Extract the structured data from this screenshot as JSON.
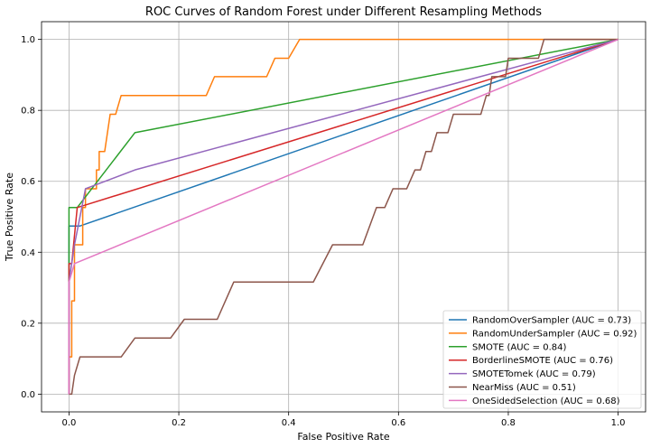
{
  "chart_data": {
    "type": "line",
    "title": "ROC Curves of Random Forest under Different Resampling Methods",
    "xlabel": "False Positive Rate",
    "ylabel": "True Positive Rate",
    "xlim": [
      -0.05,
      1.05
    ],
    "ylim": [
      -0.05,
      1.05
    ],
    "xticks": [
      "0.0",
      "0.2",
      "0.4",
      "0.6",
      "0.8",
      "1.0"
    ],
    "yticks": [
      "0.0",
      "0.2",
      "0.4",
      "0.6",
      "0.8",
      "1.0"
    ],
    "grid": true,
    "legend_position": "lower-right",
    "series": [
      {
        "name": "RandomOverSampler (AUC = 0.73)",
        "color": "#1f77b4",
        "points": [
          [
            0,
            0
          ],
          [
            0,
            0.474
          ],
          [
            0.02,
            0.474
          ],
          [
            1,
            1
          ]
        ]
      },
      {
        "name": "RandomUnderSampler (AUC = 0.92)",
        "color": "#ff7f0e",
        "points": [
          [
            0,
            0
          ],
          [
            0,
            0.105
          ],
          [
            0.005,
            0.105
          ],
          [
            0.005,
            0.263
          ],
          [
            0.01,
            0.263
          ],
          [
            0.01,
            0.421
          ],
          [
            0.025,
            0.421
          ],
          [
            0.025,
            0.526
          ],
          [
            0.03,
            0.526
          ],
          [
            0.03,
            0.579
          ],
          [
            0.05,
            0.579
          ],
          [
            0.05,
            0.632
          ],
          [
            0.055,
            0.632
          ],
          [
            0.055,
            0.684
          ],
          [
            0.065,
            0.684
          ],
          [
            0.075,
            0.789
          ],
          [
            0.085,
            0.789
          ],
          [
            0.095,
            0.842
          ],
          [
            0.25,
            0.842
          ],
          [
            0.265,
            0.895
          ],
          [
            0.36,
            0.895
          ],
          [
            0.375,
            0.947
          ],
          [
            0.4,
            0.947
          ],
          [
            0.42,
            1.0
          ],
          [
            1,
            1
          ]
        ]
      },
      {
        "name": "SMOTE (AUC = 0.84)",
        "color": "#2ca02c",
        "points": [
          [
            0,
            0
          ],
          [
            0,
            0.526
          ],
          [
            0.015,
            0.526
          ],
          [
            0.12,
            0.737
          ],
          [
            1,
            1
          ]
        ]
      },
      {
        "name": "BorderlineSMOTE (AUC = 0.76)",
        "color": "#d62728",
        "points": [
          [
            0,
            0
          ],
          [
            0,
            0.368
          ],
          [
            0.005,
            0.368
          ],
          [
            0.015,
            0.526
          ],
          [
            1,
            1
          ]
        ]
      },
      {
        "name": "SMOTETomek (AUC = 0.79)",
        "color": "#9467bd",
        "points": [
          [
            0,
            0
          ],
          [
            0,
            0.316
          ],
          [
            0.01,
            0.421
          ],
          [
            0.03,
            0.579
          ],
          [
            0.12,
            0.632
          ],
          [
            1,
            1
          ]
        ]
      },
      {
        "name": "NearMiss (AUC = 0.51)",
        "color": "#8c564b",
        "points": [
          [
            0,
            0
          ],
          [
            0.005,
            0
          ],
          [
            0.01,
            0.053
          ],
          [
            0.02,
            0.105
          ],
          [
            0.095,
            0.105
          ],
          [
            0.12,
            0.158
          ],
          [
            0.185,
            0.158
          ],
          [
            0.21,
            0.211
          ],
          [
            0.27,
            0.211
          ],
          [
            0.3,
            0.316
          ],
          [
            0.445,
            0.316
          ],
          [
            0.48,
            0.421
          ],
          [
            0.535,
            0.421
          ],
          [
            0.56,
            0.526
          ],
          [
            0.575,
            0.526
          ],
          [
            0.59,
            0.579
          ],
          [
            0.615,
            0.579
          ],
          [
            0.63,
            0.632
          ],
          [
            0.64,
            0.632
          ],
          [
            0.65,
            0.684
          ],
          [
            0.66,
            0.684
          ],
          [
            0.67,
            0.737
          ],
          [
            0.69,
            0.737
          ],
          [
            0.7,
            0.789
          ],
          [
            0.75,
            0.789
          ],
          [
            0.76,
            0.842
          ],
          [
            0.765,
            0.842
          ],
          [
            0.77,
            0.895
          ],
          [
            0.79,
            0.895
          ],
          [
            0.795,
            0.895
          ],
          [
            0.8,
            0.947
          ],
          [
            0.855,
            0.947
          ],
          [
            0.865,
            1.0
          ],
          [
            1,
            1
          ]
        ]
      },
      {
        "name": "OneSidedSelection (AUC = 0.68)",
        "color": "#e377c2",
        "points": [
          [
            0,
            0
          ],
          [
            0,
            0.316
          ],
          [
            0.01,
            0.368
          ],
          [
            1,
            1
          ]
        ]
      }
    ]
  }
}
